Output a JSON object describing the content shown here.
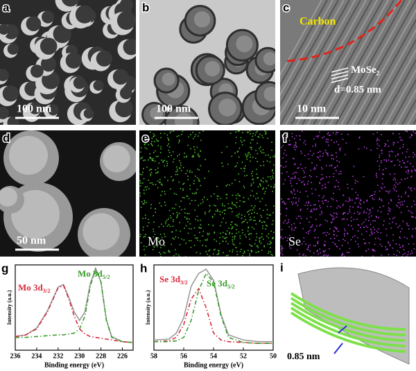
{
  "panels": [
    {
      "letter": "a",
      "scale_bar": "100 nm"
    },
    {
      "letter": "b",
      "scale_bar": "100 nm"
    },
    {
      "letter": "c",
      "scale_bar": "10 nm",
      "carbon": "Carbon",
      "lattice": {
        "text": "MoSe",
        "sub": "2"
      },
      "spacing": "d=0.85 nm"
    },
    {
      "letter": "d",
      "scale_bar": "50 nm"
    },
    {
      "letter": "e",
      "element": "Mo"
    },
    {
      "letter": "f",
      "element": "Se"
    },
    {
      "letter": "i",
      "spacing": "0.85 nm"
    }
  ],
  "chart_data": [
    {
      "type": "line",
      "panel_letter": "g",
      "xlabel": "Binding energy (eV)",
      "ylabel": "Intensity (a.u.)",
      "x": [
        236,
        235,
        234,
        233,
        232,
        231.5,
        231,
        230.5,
        230,
        229.5,
        229,
        228.5,
        228,
        227.5,
        227,
        226,
        225
      ],
      "xlim": [
        236,
        225
      ],
      "xticks": [
        236,
        234,
        232,
        230,
        228,
        226
      ],
      "ylim": [
        0,
        1
      ],
      "series": [
        {
          "color": "#999999",
          "dash": "solid",
          "values": [
            0.16,
            0.18,
            0.26,
            0.46,
            0.74,
            0.77,
            0.62,
            0.45,
            0.35,
            0.45,
            0.78,
            0.96,
            0.8,
            0.36,
            0.16,
            0.1,
            0.09
          ]
        },
        {
          "color": "#d9283c",
          "dash": "dash-dot",
          "values": [
            0.16,
            0.18,
            0.25,
            0.45,
            0.73,
            0.76,
            0.6,
            0.4,
            0.25,
            0.19,
            0.16,
            0.15,
            0.14,
            0.13,
            0.12,
            0.1,
            0.09
          ]
        },
        {
          "color": "#3a9a2a",
          "dash": "dash-dot",
          "values": [
            0.15,
            0.15,
            0.16,
            0.17,
            0.18,
            0.18,
            0.19,
            0.2,
            0.25,
            0.4,
            0.75,
            0.95,
            0.8,
            0.35,
            0.15,
            0.1,
            0.09
          ]
        }
      ],
      "annotations": [
        {
          "text": "Mo 3d",
          "sub": "3/2",
          "color": "#d9283c"
        },
        {
          "text": "Mo 3d",
          "sub": "5/2",
          "color": "#3a9a2a"
        }
      ]
    },
    {
      "type": "line",
      "panel_letter": "h",
      "xlabel": "Binding energy (eV)",
      "ylabel": "Intensity (a.u.)",
      "x": [
        58,
        57,
        56.5,
        56,
        55.5,
        55,
        54.5,
        54,
        53.5,
        53,
        52,
        51,
        50
      ],
      "xlim": [
        58,
        50
      ],
      "xticks": [
        58,
        56,
        54,
        52,
        50
      ],
      "ylim": [
        0,
        1
      ],
      "series": [
        {
          "color": "#999999",
          "dash": "solid",
          "values": [
            0.12,
            0.13,
            0.2,
            0.38,
            0.75,
            0.9,
            0.95,
            0.82,
            0.42,
            0.18,
            0.12,
            0.1,
            0.1
          ]
        },
        {
          "color": "#d9283c",
          "dash": "dash-dot",
          "values": [
            0.1,
            0.11,
            0.15,
            0.3,
            0.6,
            0.72,
            0.5,
            0.2,
            0.12,
            0.1,
            0.09,
            0.08,
            0.08
          ]
        },
        {
          "color": "#3a9a2a",
          "dash": "dash-dot",
          "values": [
            0.1,
            0.1,
            0.11,
            0.15,
            0.35,
            0.7,
            0.9,
            0.8,
            0.4,
            0.15,
            0.09,
            0.08,
            0.08
          ]
        }
      ],
      "annotations": [
        {
          "text": "Se 3d",
          "sub": "3/2",
          "color": "#d9283c"
        },
        {
          "text": "Se 3d",
          "sub": "5/2",
          "color": "#3a9a2a"
        }
      ]
    }
  ]
}
